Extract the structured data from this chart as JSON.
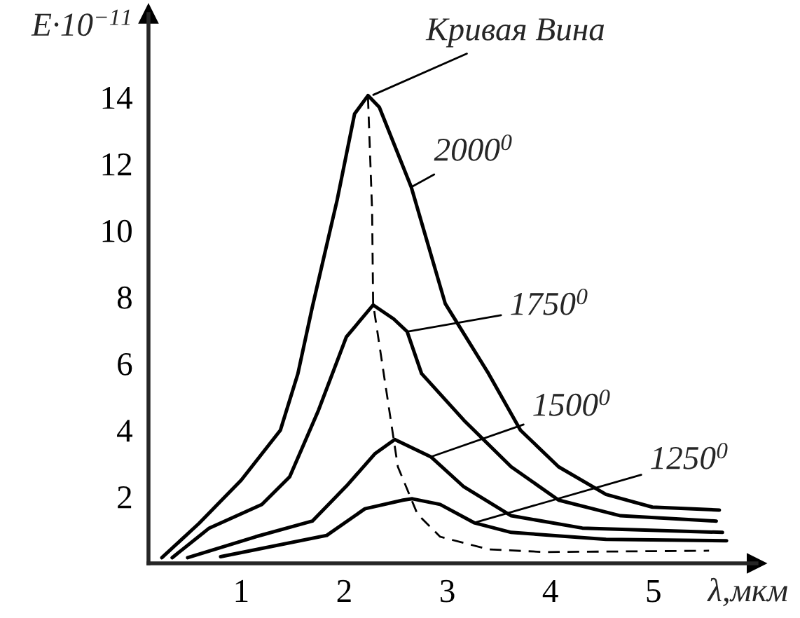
{
  "chart_data": {
    "type": "line",
    "ylabel": "E·10$^{−11}$",
    "xlabel": "λ,мкм",
    "xlim": [
      0.1,
      6.0
    ],
    "ylim": [
      0,
      16.5
    ],
    "xticks": [
      1,
      2,
      3,
      4,
      5
    ],
    "yticks": [
      2,
      4,
      6,
      8,
      10,
      12,
      14
    ],
    "grid": false,
    "marker": "none",
    "line_style": "solid",
    "annotations": [
      {
        "text": "Кривая Вина",
        "x": 2.23,
        "y": 14.0
      }
    ],
    "series": [
      {
        "name": "2000$^{0}$",
        "color": "#000000",
        "x": [
          0.23,
          0.59,
          1.0,
          1.38,
          1.55,
          1.69,
          1.93,
          2.1,
          2.23,
          2.34,
          2.65,
          2.98,
          3.12,
          3.4,
          3.71,
          4.08,
          4.54,
          4.99,
          5.64
        ],
        "values": [
          0.17,
          1.2,
          2.5,
          4.0,
          5.7,
          7.7,
          10.9,
          13.5,
          14.05,
          13.7,
          11.3,
          7.8,
          7.1,
          5.7,
          4.0,
          2.9,
          2.07,
          1.69,
          1.6
        ]
      },
      {
        "name": "1750$^{0}$",
        "color": "#000000",
        "x": [
          0.33,
          0.69,
          1.2,
          1.47,
          1.75,
          2.02,
          2.28,
          2.48,
          2.61,
          2.75,
          3.16,
          3.62,
          4.08,
          4.68,
          5.61
        ],
        "values": [
          0.17,
          1.06,
          1.77,
          2.6,
          4.6,
          6.8,
          7.76,
          7.34,
          6.96,
          5.7,
          4.3,
          2.9,
          1.9,
          1.43,
          1.27
        ]
      },
      {
        "name": "1500$^{0}$",
        "color": "#000000",
        "x": [
          0.48,
          1.14,
          1.69,
          2.02,
          2.3,
          2.49,
          2.84,
          3.16,
          3.62,
          4.31,
          5.67
        ],
        "values": [
          0.17,
          0.8,
          1.27,
          2.32,
          3.3,
          3.72,
          3.2,
          2.3,
          1.43,
          1.06,
          0.93
        ]
      },
      {
        "name": "1250$^{0}$",
        "color": "#000000",
        "x": [
          0.8,
          1.83,
          2.2,
          2.57,
          2.66,
          2.93,
          3.26,
          3.62,
          4.54,
          5.71
        ],
        "values": [
          0.2,
          0.84,
          1.64,
          1.9,
          1.94,
          1.77,
          1.22,
          0.93,
          0.72,
          0.68
        ]
      },
      {
        "color": "#000000",
        "line_style": "dashed",
        "x": [
          2.23,
          2.27,
          2.28,
          2.52,
          2.71,
          2.93,
          3.4,
          3.95,
          5.54
        ],
        "values": [
          14.0,
          10.6,
          7.8,
          2.9,
          1.48,
          0.8,
          0.42,
          0.34,
          0.38
        ]
      }
    ]
  }
}
